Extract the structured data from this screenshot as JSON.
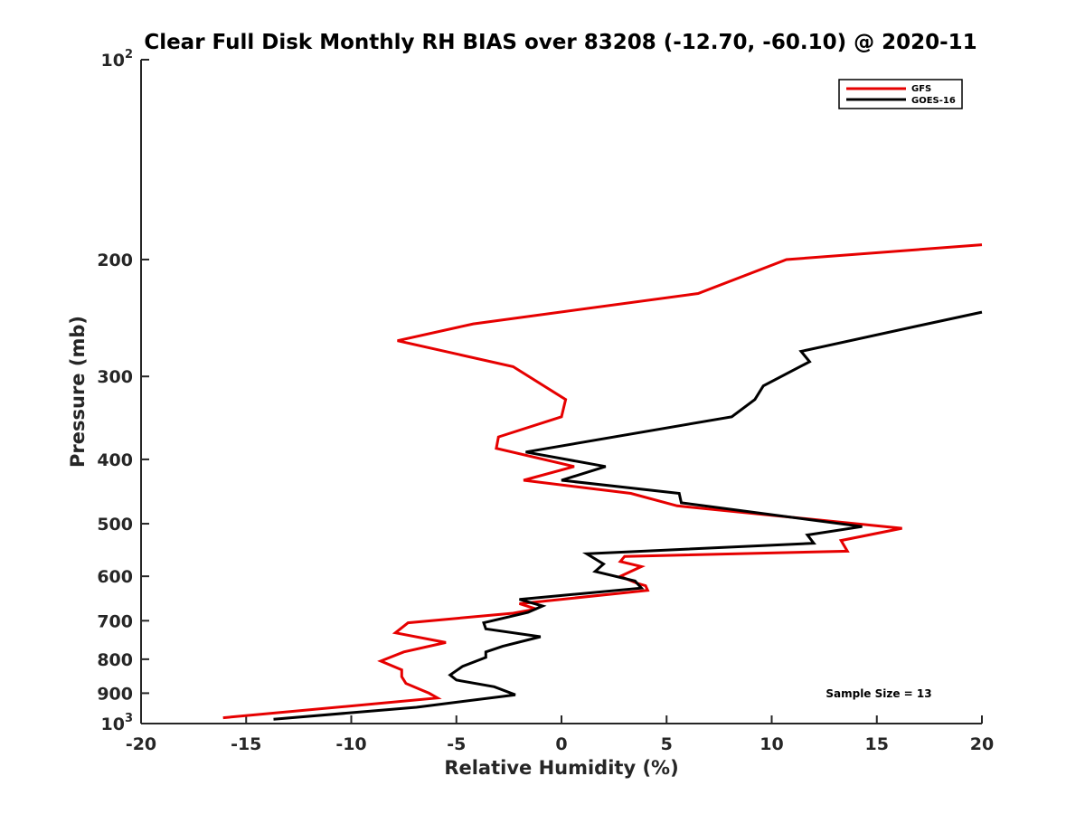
{
  "chart_data": {
    "type": "line",
    "title": "Clear Full Disk Monthly RH BIAS over 83208 (-12.70, -60.10) @ 2020-11",
    "xlabel": "Relative Humidity (%)",
    "ylabel": "Pressure (mb)",
    "xlim": [
      -20,
      20
    ],
    "ylim": [
      100,
      1000
    ],
    "y_scale": "log",
    "y_reversed": true,
    "grid": false,
    "legend_position": "top-right",
    "annotation": "Sample Size = 13",
    "x_ticks": [
      "-20",
      "-15",
      "-10",
      "-5",
      "0",
      "5",
      "10",
      "15",
      "20"
    ],
    "x_tick_values": [
      -20,
      -15,
      -10,
      -5,
      0,
      5,
      10,
      15,
      20
    ],
    "y_ticks": [
      {
        "value": 100,
        "label": "10",
        "sup": "2"
      },
      {
        "value": 200,
        "label": "200"
      },
      {
        "value": 300,
        "label": "300"
      },
      {
        "value": 400,
        "label": "400"
      },
      {
        "value": 500,
        "label": "500"
      },
      {
        "value": 600,
        "label": "600"
      },
      {
        "value": 700,
        "label": "700"
      },
      {
        "value": 800,
        "label": "800"
      },
      {
        "value": 900,
        "label": "900"
      },
      {
        "value": 1000,
        "label": "10",
        "sup": "3"
      }
    ],
    "series": [
      {
        "name": "GFS",
        "color": "#e60000",
        "points": [
          [
            20.0,
            190
          ],
          [
            10.7,
            200
          ],
          [
            6.5,
            225
          ],
          [
            -4.2,
            250
          ],
          [
            -7.8,
            265
          ],
          [
            -2.3,
            290
          ],
          [
            0.2,
            325
          ],
          [
            0.0,
            345
          ],
          [
            -3.0,
            370
          ],
          [
            -3.1,
            385
          ],
          [
            0.6,
            410
          ],
          [
            -1.8,
            430
          ],
          [
            3.3,
            450
          ],
          [
            5.5,
            470
          ],
          [
            16.2,
            508
          ],
          [
            13.3,
            530
          ],
          [
            13.6,
            550
          ],
          [
            3.0,
            560
          ],
          [
            2.8,
            570
          ],
          [
            3.8,
            580
          ],
          [
            2.8,
            600
          ],
          [
            3.6,
            615
          ],
          [
            4.0,
            620
          ],
          [
            4.1,
            630
          ],
          [
            -2.0,
            660
          ],
          [
            -1.2,
            672
          ],
          [
            -2.3,
            682
          ],
          [
            -7.3,
            705
          ],
          [
            -7.9,
            730
          ],
          [
            -5.5,
            755
          ],
          [
            -7.5,
            780
          ],
          [
            -8.6,
            805
          ],
          [
            -7.6,
            830
          ],
          [
            -7.6,
            850
          ],
          [
            -7.4,
            870
          ],
          [
            -6.3,
            900
          ],
          [
            -5.9,
            915
          ],
          [
            -16.1,
            980
          ]
        ]
      },
      {
        "name": "GOES-16",
        "color": "#000000",
        "points": [
          [
            20.0,
            240
          ],
          [
            17.4,
            250
          ],
          [
            11.4,
            275
          ],
          [
            11.8,
            285
          ],
          [
            9.6,
            310
          ],
          [
            9.2,
            325
          ],
          [
            8.1,
            345
          ],
          [
            -1.7,
            390
          ],
          [
            2.1,
            410
          ],
          [
            0.0,
            430
          ],
          [
            5.6,
            450
          ],
          [
            5.7,
            465
          ],
          [
            14.3,
            505
          ],
          [
            11.7,
            520
          ],
          [
            12.0,
            535
          ],
          [
            1.2,
            555
          ],
          [
            2.0,
            575
          ],
          [
            1.6,
            590
          ],
          [
            3.5,
            610
          ],
          [
            3.8,
            625
          ],
          [
            -2.0,
            650
          ],
          [
            -0.9,
            665
          ],
          [
            -1.6,
            680
          ],
          [
            -3.7,
            705
          ],
          [
            -3.6,
            720
          ],
          [
            -1.0,
            740
          ],
          [
            -2.8,
            765
          ],
          [
            -3.6,
            780
          ],
          [
            -3.6,
            795
          ],
          [
            -4.7,
            820
          ],
          [
            -5.3,
            845
          ],
          [
            -5.0,
            860
          ],
          [
            -3.2,
            880
          ],
          [
            -2.2,
            905
          ],
          [
            -6.9,
            945
          ],
          [
            -13.7,
            985
          ]
        ]
      }
    ]
  }
}
